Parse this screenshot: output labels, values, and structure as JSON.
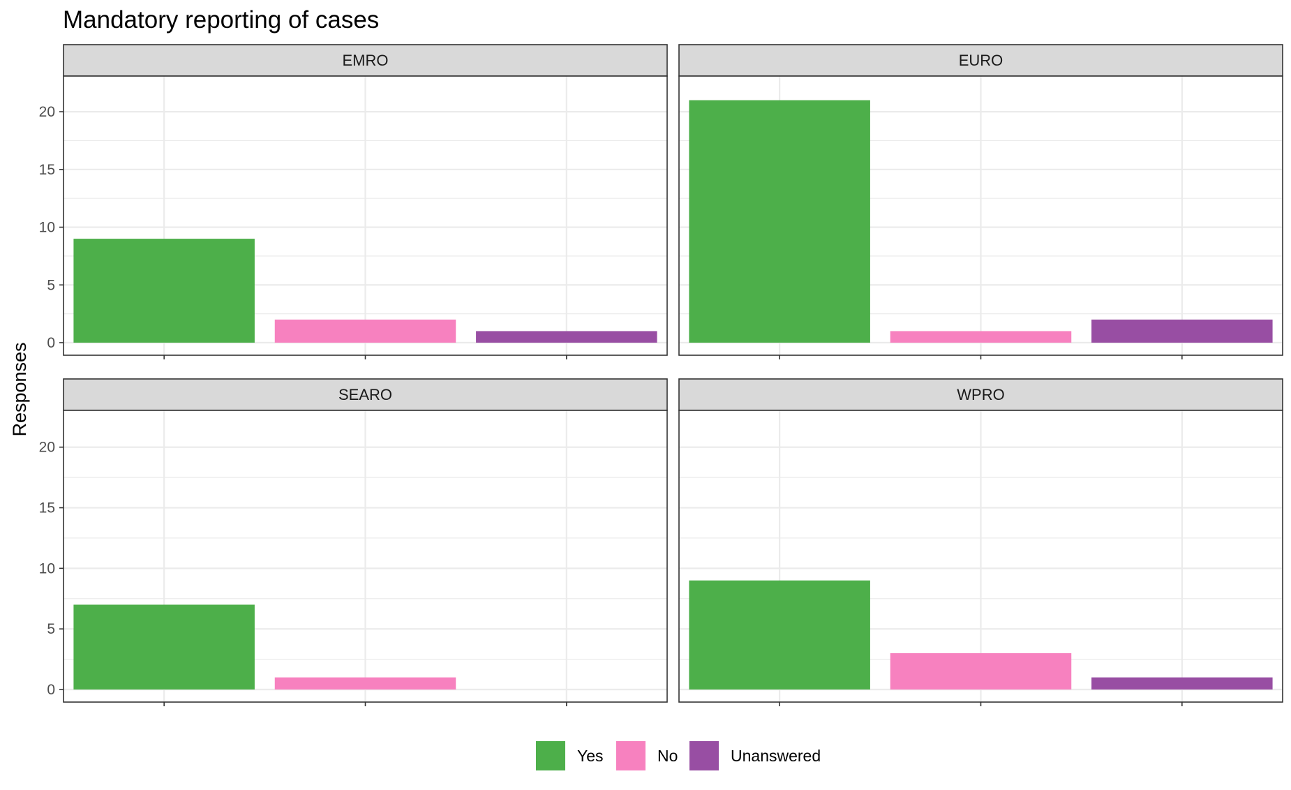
{
  "chart_data": {
    "type": "bar",
    "title": "Mandatory reporting of cases",
    "ylabel": "Responses",
    "xlabel": "",
    "categories": [
      "Yes",
      "No",
      "Unanswered"
    ],
    "colors": {
      "Yes": "#4daf4a",
      "No": "#f781bf",
      "Unanswered": "#984ea3"
    },
    "ylim": [
      0,
      22
    ],
    "yticks": [
      0,
      5,
      10,
      15,
      20
    ],
    "grid": true,
    "legend_position": "bottom",
    "facets": [
      {
        "name": "EMRO",
        "values": [
          9,
          2,
          1
        ]
      },
      {
        "name": "EURO",
        "values": [
          21,
          1,
          2
        ]
      },
      {
        "name": "SEARO",
        "values": [
          7,
          1,
          0
        ]
      },
      {
        "name": "WPRO",
        "values": [
          9,
          3,
          1
        ]
      }
    ]
  }
}
